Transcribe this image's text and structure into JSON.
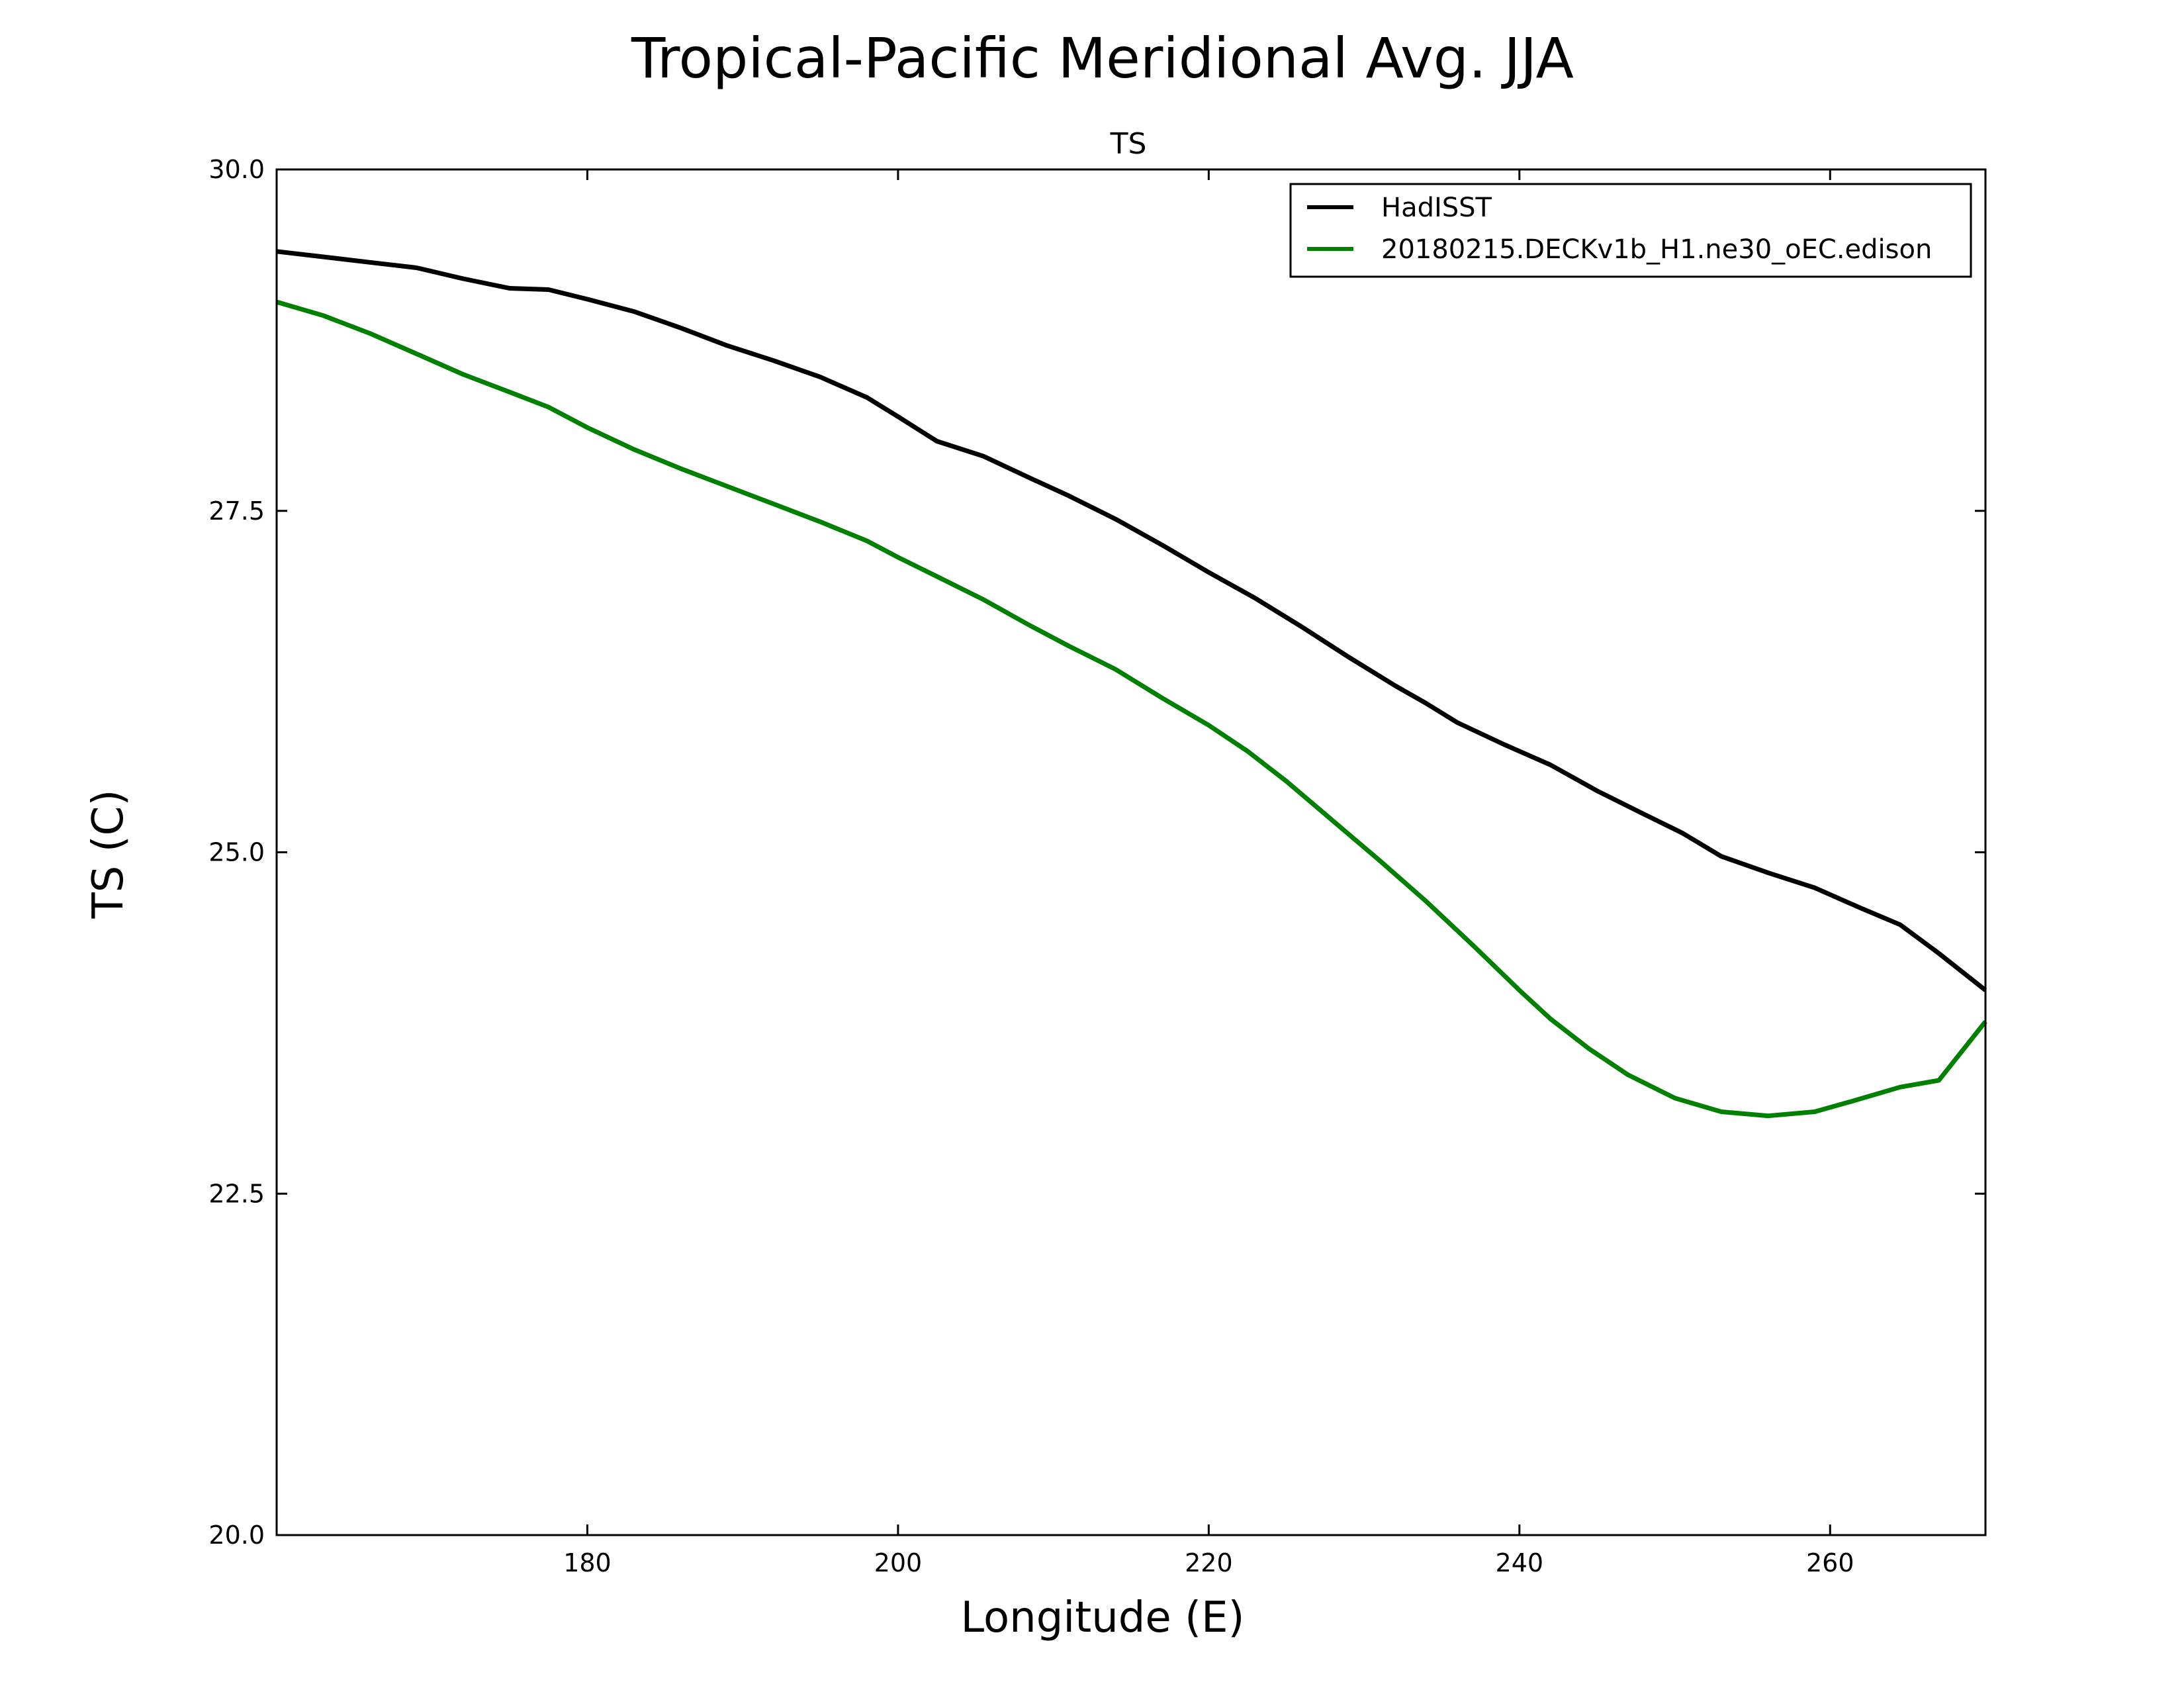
{
  "chart_data": {
    "type": "line",
    "suptitle": "Tropical-Pacific Meridional Avg. JJA",
    "title": "TS",
    "xlabel": "Longitude (E)",
    "ylabel": "TS (C)",
    "xlim": [
      160,
      270
    ],
    "ylim": [
      20.0,
      30.0
    ],
    "xticks": [
      180,
      200,
      220,
      240,
      260
    ],
    "xtick_labels": [
      "180",
      "200",
      "220",
      "240",
      "260"
    ],
    "yticks": [
      20.0,
      22.5,
      25.0,
      27.5,
      30.0
    ],
    "ytick_labels": [
      "20.0",
      "22.5",
      "25.0",
      "27.5",
      "30.0"
    ],
    "legend_position": "top-right",
    "grid": false,
    "series": [
      {
        "name": "HadISST",
        "color": "#000000",
        "x": [
          160,
          163,
          166,
          169,
          172,
          175,
          177.5,
          180,
          183,
          186,
          189,
          192,
          195,
          198,
          200,
          202.5,
          205.5,
          208.5,
          211,
          214,
          217,
          220,
          223,
          226,
          229,
          232,
          234,
          236,
          239,
          242,
          245,
          248,
          250.5,
          253,
          256,
          259,
          262,
          264.5,
          267,
          270
        ],
        "y": [
          29.4,
          29.36,
          29.32,
          29.28,
          29.2,
          29.13,
          29.12,
          29.05,
          28.96,
          28.84,
          28.71,
          28.6,
          28.48,
          28.33,
          28.19,
          28.01,
          27.9,
          27.74,
          27.61,
          27.44,
          27.25,
          27.05,
          26.86,
          26.65,
          26.43,
          26.22,
          26.09,
          25.95,
          25.79,
          25.64,
          25.45,
          25.28,
          25.14,
          24.97,
          24.85,
          24.74,
          24.59,
          24.47,
          24.26,
          23.99
        ]
      },
      {
        "name": "20180215.DECKv1b_H1.ne30_oEC.edison",
        "color": "#008000",
        "x": [
          160,
          163,
          166,
          169,
          172,
          175,
          177.5,
          180,
          183,
          186,
          189,
          192,
          195,
          198,
          200,
          202.5,
          205.5,
          208.5,
          211,
          214,
          217,
          220,
          222.5,
          225,
          228,
          231,
          234,
          237,
          240,
          242,
          244.5,
          247,
          250,
          253,
          256,
          259,
          261.5,
          264.5,
          267,
          270
        ],
        "y": [
          29.03,
          28.93,
          28.8,
          28.65,
          28.5,
          28.37,
          28.26,
          28.11,
          27.95,
          27.81,
          27.68,
          27.55,
          27.42,
          27.28,
          27.16,
          27.02,
          26.85,
          26.66,
          26.51,
          26.34,
          26.13,
          25.93,
          25.74,
          25.52,
          25.23,
          24.94,
          24.64,
          24.32,
          23.99,
          23.78,
          23.56,
          23.37,
          23.2,
          23.1,
          23.07,
          23.1,
          23.18,
          23.28,
          23.33,
          23.76
        ]
      }
    ]
  }
}
